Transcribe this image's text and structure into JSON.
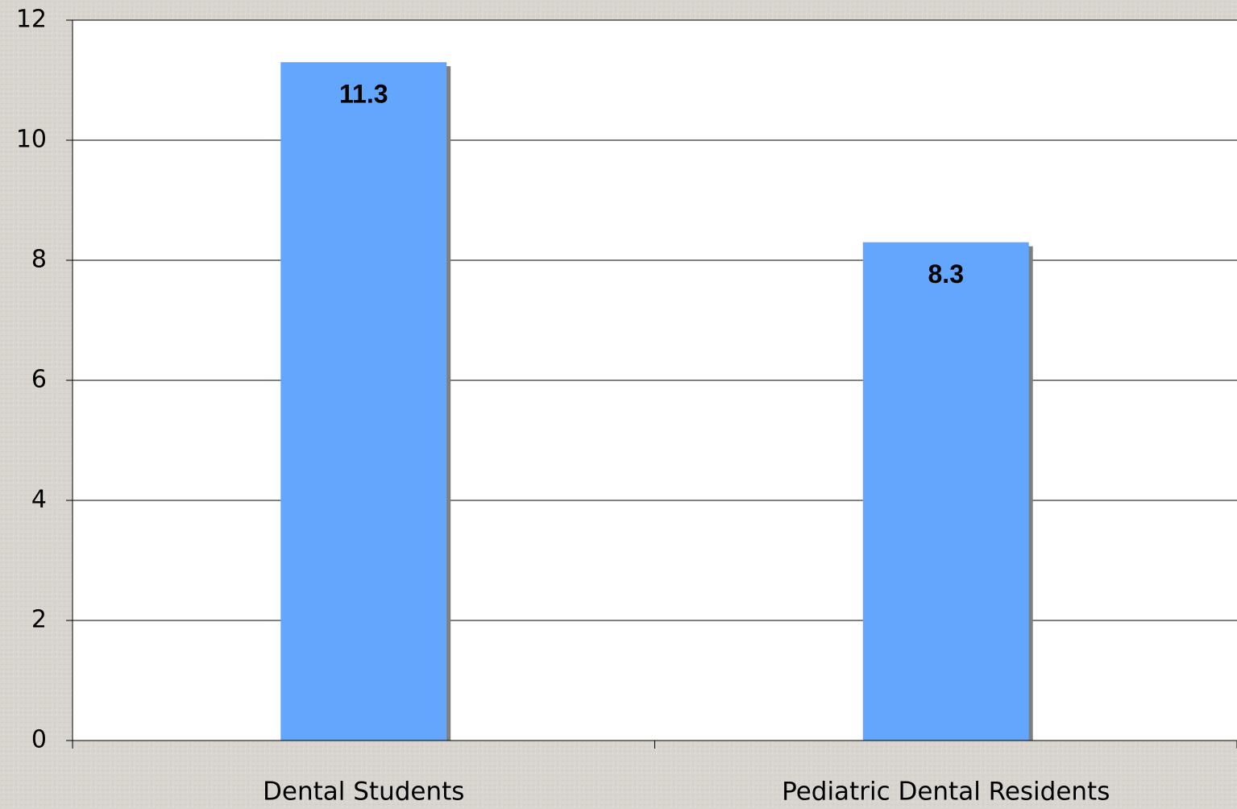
{
  "chart_data": {
    "type": "bar",
    "categories": [
      "Dental Students",
      "Pediatric Dental Residents"
    ],
    "values": [
      11.3,
      8.3
    ],
    "color": "#62a6fd",
    "ylim": [
      0,
      12
    ],
    "yticks": [
      0,
      2,
      4,
      6,
      8,
      10,
      12
    ],
    "grid": true
  }
}
